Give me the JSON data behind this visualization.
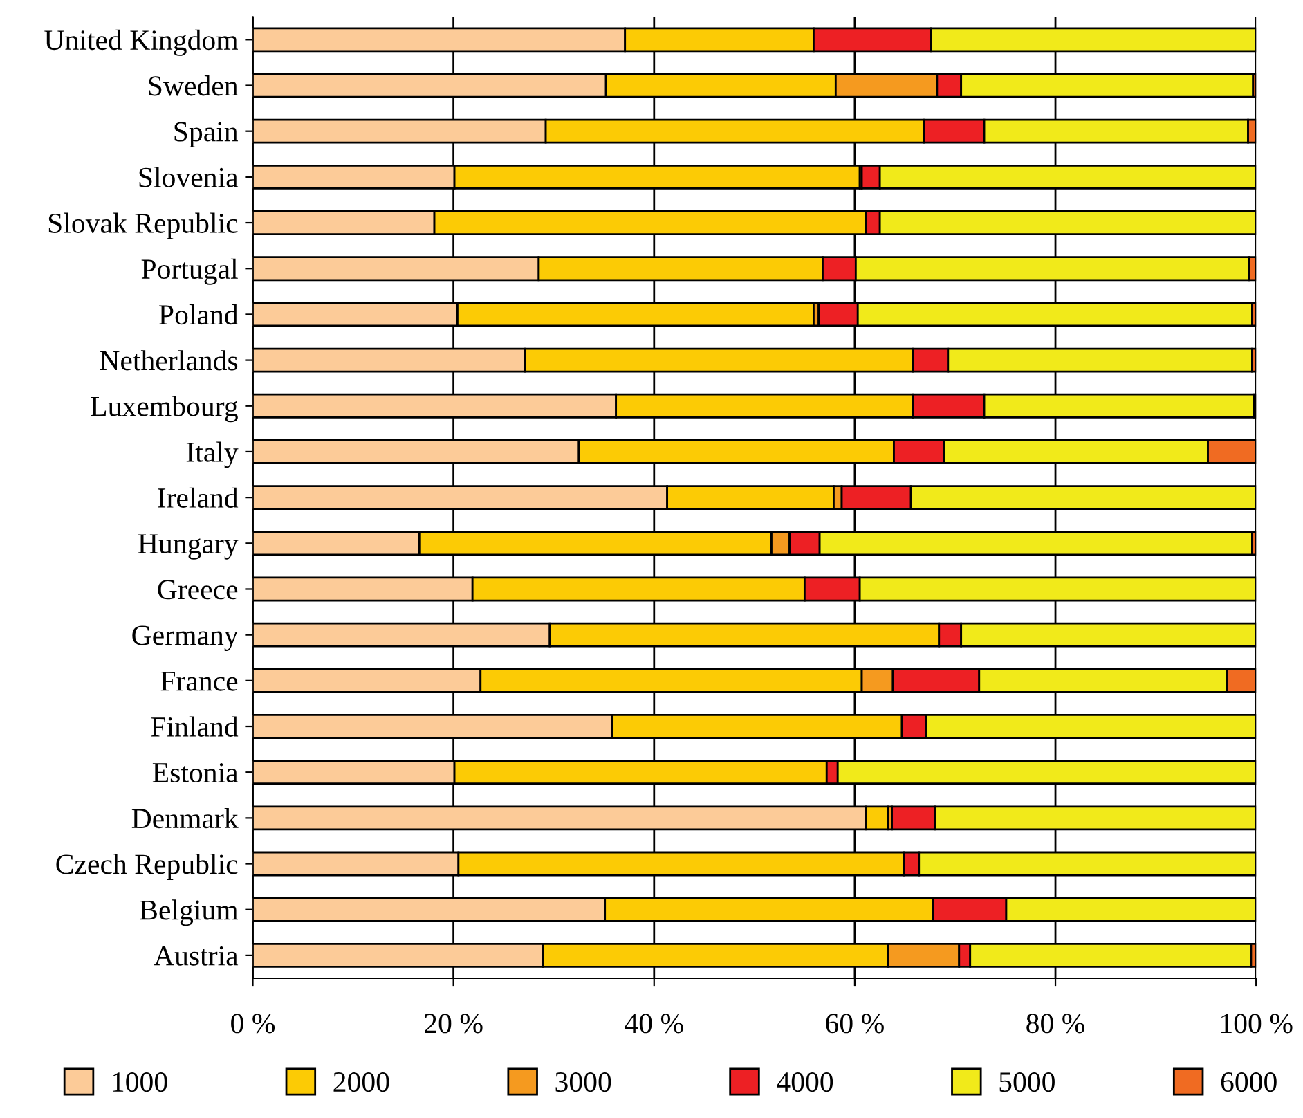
{
  "chart_data": {
    "type": "bar",
    "orientation": "horizontal",
    "stacked": true,
    "categories": [
      "United Kingdom",
      "Sweden",
      "Spain",
      "Slovenia",
      "Slovak Republic",
      "Portugal",
      "Poland",
      "Netherlands",
      "Luxembourg",
      "Italy",
      "Ireland",
      "Hungary",
      "Greece",
      "Germany",
      "France",
      "Finland",
      "Estonia",
      "Denmark",
      "Czech Republic",
      "Belgium",
      "Austria"
    ],
    "series": [
      {
        "name": "1000",
        "color": "#fccb98",
        "values": [
          37.1,
          35.2,
          29.2,
          20.1,
          18.1,
          28.5,
          20.4,
          27.1,
          36.2,
          32.5,
          41.3,
          16.6,
          21.9,
          29.6,
          22.7,
          35.8,
          20.1,
          61.1,
          20.5,
          35.1,
          28.9
        ]
      },
      {
        "name": "2000",
        "color": "#fccb05",
        "values": [
          18.8,
          22.9,
          37.7,
          40.4,
          43.0,
          28.3,
          35.5,
          38.7,
          29.6,
          31.4,
          16.6,
          35.1,
          33.1,
          38.8,
          38.0,
          28.9,
          37.1,
          2.2,
          44.4,
          32.7,
          34.4
        ]
      },
      {
        "name": "3000",
        "color": "#f59a1f",
        "values": [
          null,
          10.1,
          null,
          0.2,
          null,
          null,
          0.5,
          null,
          null,
          null,
          0.8,
          1.8,
          null,
          null,
          3.1,
          null,
          null,
          0.4,
          null,
          null,
          7.1
        ]
      },
      {
        "name": "4000",
        "color": "#ed2024",
        "values": [
          11.7,
          2.4,
          6.0,
          1.8,
          1.4,
          3.3,
          3.9,
          3.5,
          7.1,
          5.0,
          6.9,
          3.0,
          5.5,
          2.2,
          8.6,
          2.4,
          1.1,
          4.3,
          1.5,
          7.3,
          1.1
        ]
      },
      {
        "name": "5000",
        "color": "#f1ea1a",
        "values": [
          32.4,
          29.1,
          26.3,
          37.5,
          37.5,
          39.2,
          39.3,
          30.3,
          26.9,
          26.3,
          34.4,
          43.1,
          39.5,
          29.4,
          24.7,
          32.9,
          41.7,
          32.0,
          33.6,
          24.9,
          28.0
        ]
      },
      {
        "name": "6000",
        "color": "#f06b22",
        "values": [
          null,
          0.3,
          0.8,
          null,
          null,
          0.7,
          0.4,
          0.4,
          0.2,
          4.8,
          null,
          0.4,
          null,
          null,
          2.9,
          null,
          null,
          null,
          null,
          null,
          0.5
        ]
      }
    ],
    "xlim": [
      0,
      100
    ],
    "xticks": [
      {
        "value": 0,
        "label": "0 %"
      },
      {
        "value": 20,
        "label": "20 %"
      },
      {
        "value": 40,
        "label": "40 %"
      },
      {
        "value": 60,
        "label": "60 %"
      },
      {
        "value": 80,
        "label": "80 %"
      },
      {
        "value": 100,
        "label": "100 %"
      }
    ],
    "grid": "x",
    "legend": "bottom"
  }
}
